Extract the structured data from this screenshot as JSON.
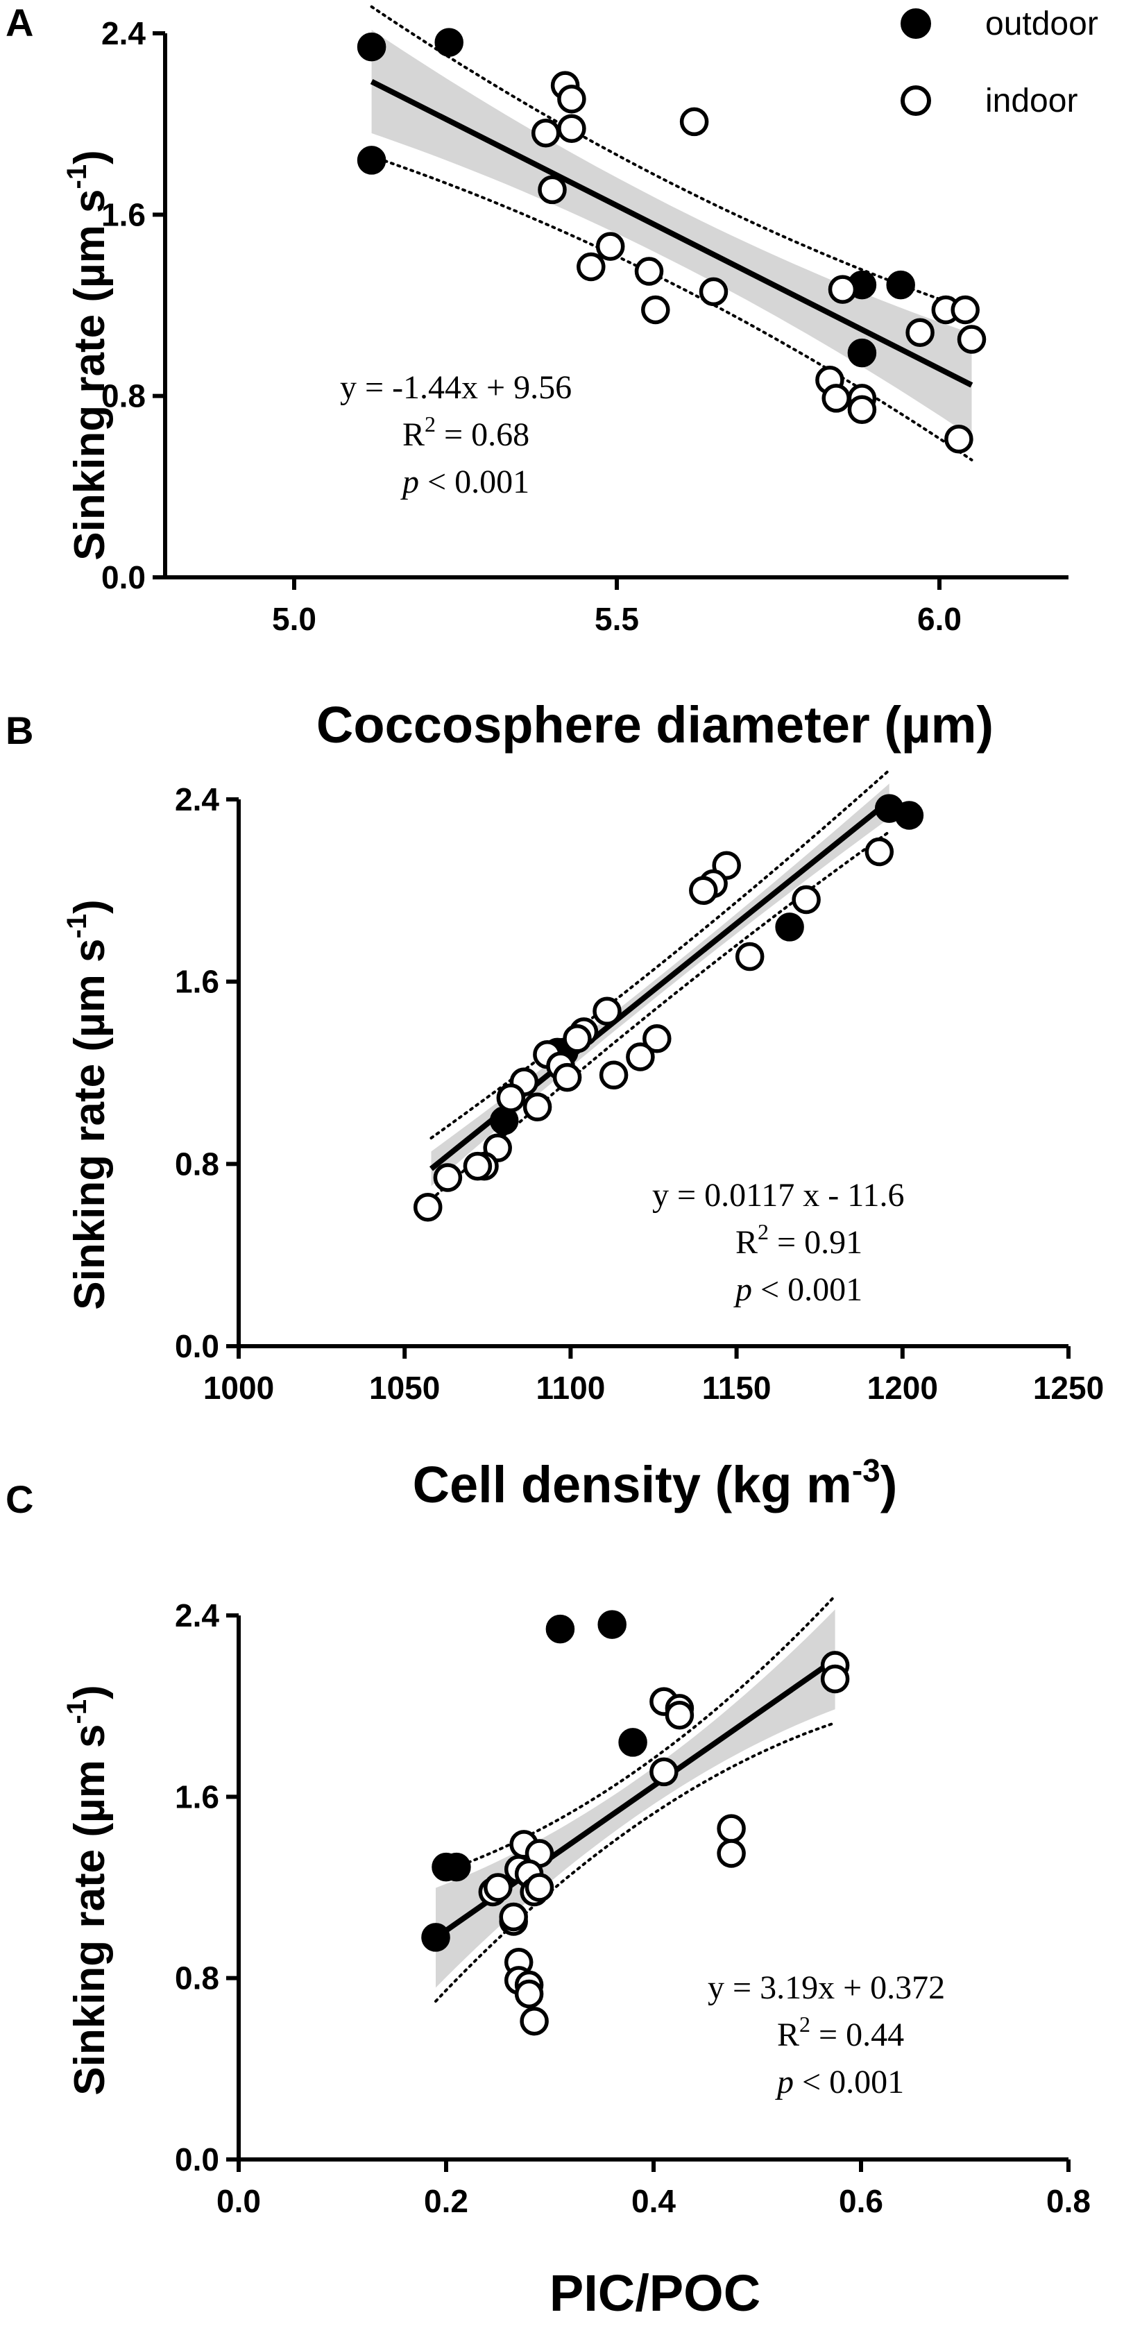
{
  "legend": [
    {
      "label": "outdoor",
      "fill": "#000000"
    },
    {
      "label": "indoor",
      "fill": "#ffffff"
    }
  ],
  "chart_data": [
    {
      "panel": "A",
      "type": "scatter",
      "xlabel": "Coccosphere diameter (µm)",
      "ylabel_main": "Sinking rate (µm s",
      "ylabel_sup": "-1",
      "ylabel_close": ")",
      "xlim": [
        4.8,
        6.2
      ],
      "ylim": [
        0.0,
        2.4
      ],
      "xticks": [
        "5.0",
        "5.5",
        "6.0"
      ],
      "xtick_values": [
        5.0,
        5.5,
        6.0
      ],
      "yticks": [
        "0.0",
        "0.8",
        "1.6",
        "2.4"
      ],
      "ytick_values": [
        0.0,
        0.8,
        1.6,
        2.4
      ],
      "fit": {
        "slope": -1.44,
        "intercept": 9.56,
        "x_range": [
          5.12,
          6.05
        ],
        "band_inner": 0.12,
        "band_outer": 0.22
      },
      "equation": {
        "line1": "y =  -1.44x + 9.56",
        "r2_prefix": "R",
        "r2_sup": "2",
        "r2_rest": " = 0.68",
        "p_italic": "p",
        "p_rest": " < 0.001"
      },
      "series": [
        {
          "name": "outdoor",
          "points": [
            [
              5.12,
              2.34
            ],
            [
              5.24,
              2.36
            ],
            [
              5.12,
              1.84
            ],
            [
              5.88,
              1.29
            ],
            [
              5.94,
              1.29
            ],
            [
              5.88,
              0.99
            ]
          ]
        },
        {
          "name": "indoor",
          "points": [
            [
              5.42,
              2.17
            ],
            [
              5.43,
              2.11
            ],
            [
              5.39,
              1.96
            ],
            [
              5.43,
              1.98
            ],
            [
              5.62,
              2.01
            ],
            [
              5.4,
              1.71
            ],
            [
              5.49,
              1.46
            ],
            [
              5.46,
              1.37
            ],
            [
              5.55,
              1.35
            ],
            [
              5.65,
              1.26
            ],
            [
              5.56,
              1.18
            ],
            [
              5.85,
              1.27
            ],
            [
              6.01,
              1.18
            ],
            [
              6.04,
              1.18
            ],
            [
              5.97,
              1.08
            ],
            [
              6.05,
              1.05
            ],
            [
              5.83,
              0.87
            ],
            [
              5.84,
              0.79
            ],
            [
              5.88,
              0.79
            ],
            [
              5.88,
              0.74
            ],
            [
              6.03,
              0.61
            ]
          ]
        }
      ]
    },
    {
      "panel": "B",
      "type": "scatter",
      "xlabel_main": "Cell density (kg m",
      "xlabel_sup": "-3",
      "xlabel_close": ")",
      "ylabel_main": "Sinking rate (µm s",
      "ylabel_sup": "-1",
      "ylabel_close": ")",
      "xlim": [
        1000,
        1250
      ],
      "ylim": [
        0.0,
        2.4
      ],
      "xticks": [
        "1000",
        "1050",
        "1100",
        "1150",
        "1200",
        "1250"
      ],
      "xtick_values": [
        1000,
        1050,
        1100,
        1150,
        1200,
        1250
      ],
      "yticks": [
        "0.0",
        "0.8",
        "1.6",
        "2.4"
      ],
      "ytick_values": [
        0.0,
        0.8,
        1.6,
        2.4
      ],
      "fit": {
        "slope": 0.0117,
        "intercept": -11.6,
        "x_range": [
          1058,
          1196
        ],
        "band_inner": 0.04,
        "band_outer": 0.09
      },
      "equation": {
        "line1": "y =  0.0117 x - 11.6",
        "r2_prefix": "R",
        "r2_sup": "2",
        "r2_rest": " = 0.91",
        "p_italic": "p",
        "p_rest": " < 0.001"
      },
      "series": [
        {
          "name": "outdoor",
          "points": [
            [
              1196,
              2.36
            ],
            [
              1202,
              2.33
            ],
            [
              1166,
              1.84
            ],
            [
              1080,
              0.99
            ],
            [
              1096,
              1.29
            ],
            [
              1098,
              1.29
            ]
          ]
        },
        {
          "name": "indoor",
          "points": [
            [
              1147,
              2.11
            ],
            [
              1143,
              2.03
            ],
            [
              1140,
              2.0
            ],
            [
              1193,
              2.17
            ],
            [
              1171,
              1.96
            ],
            [
              1154,
              1.71
            ],
            [
              1111,
              1.47
            ],
            [
              1104,
              1.38
            ],
            [
              1102,
              1.35
            ],
            [
              1093,
              1.28
            ],
            [
              1097,
              1.23
            ],
            [
              1099,
              1.18
            ],
            [
              1113,
              1.19
            ],
            [
              1126,
              1.35
            ],
            [
              1121,
              1.27
            ],
            [
              1086,
              1.16
            ],
            [
              1082,
              1.09
            ],
            [
              1090,
              1.05
            ],
            [
              1078,
              0.87
            ],
            [
              1074,
              0.79
            ],
            [
              1072,
              0.79
            ],
            [
              1063,
              0.74
            ],
            [
              1057,
              0.61
            ]
          ]
        }
      ]
    },
    {
      "panel": "C",
      "type": "scatter",
      "xlabel": "PIC/POC",
      "ylabel_main": "Sinking rate (µm s",
      "ylabel_sup": "-1",
      "ylabel_close": ")",
      "xlim": [
        0.0,
        0.8
      ],
      "ylim": [
        0.0,
        2.4
      ],
      "xticks": [
        "0.0",
        "0.2",
        "0.4",
        "0.6",
        "0.8"
      ],
      "xtick_values": [
        0.0,
        0.2,
        0.4,
        0.6,
        0.8
      ],
      "yticks": [
        "0.0",
        "0.8",
        "1.6",
        "2.4"
      ],
      "ytick_values": [
        0.0,
        0.8,
        1.6,
        2.4
      ],
      "fit": {
        "slope": 3.19,
        "intercept": 0.372,
        "x_range": [
          0.19,
          0.575
        ],
        "band_inner_min": 0.08,
        "band_inner_max": 0.22,
        "band_outer_min": 0.12,
        "band_outer_max": 0.28
      },
      "equation": {
        "line1": "y = 3.19x + 0.372",
        "r2_prefix": "R",
        "r2_sup": "2",
        "r2_rest": " = 0.44",
        "p_italic": "p",
        "p_rest": " < 0.001"
      },
      "series": [
        {
          "name": "outdoor",
          "points": [
            [
              0.31,
              2.34
            ],
            [
              0.36,
              2.36
            ],
            [
              0.38,
              1.84
            ],
            [
              0.2,
              1.29
            ],
            [
              0.21,
              1.29
            ],
            [
              0.19,
              0.98
            ]
          ]
        },
        {
          "name": "indoor",
          "points": [
            [
              0.575,
              2.18
            ],
            [
              0.575,
              2.12
            ],
            [
              0.41,
              2.02
            ],
            [
              0.425,
              1.99
            ],
            [
              0.425,
              1.96
            ],
            [
              0.41,
              1.71
            ],
            [
              0.475,
              1.46
            ],
            [
              0.475,
              1.35
            ],
            [
              0.275,
              1.39
            ],
            [
              0.29,
              1.35
            ],
            [
              0.27,
              1.28
            ],
            [
              0.28,
              1.26
            ],
            [
              0.245,
              1.18
            ],
            [
              0.25,
              1.2
            ],
            [
              0.285,
              1.18
            ],
            [
              0.29,
              1.2
            ],
            [
              0.265,
              1.05
            ],
            [
              0.265,
              1.07
            ],
            [
              0.27,
              0.87
            ],
            [
              0.27,
              0.79
            ],
            [
              0.28,
              0.77
            ],
            [
              0.28,
              0.73
            ],
            [
              0.285,
              0.61
            ]
          ]
        }
      ]
    }
  ]
}
